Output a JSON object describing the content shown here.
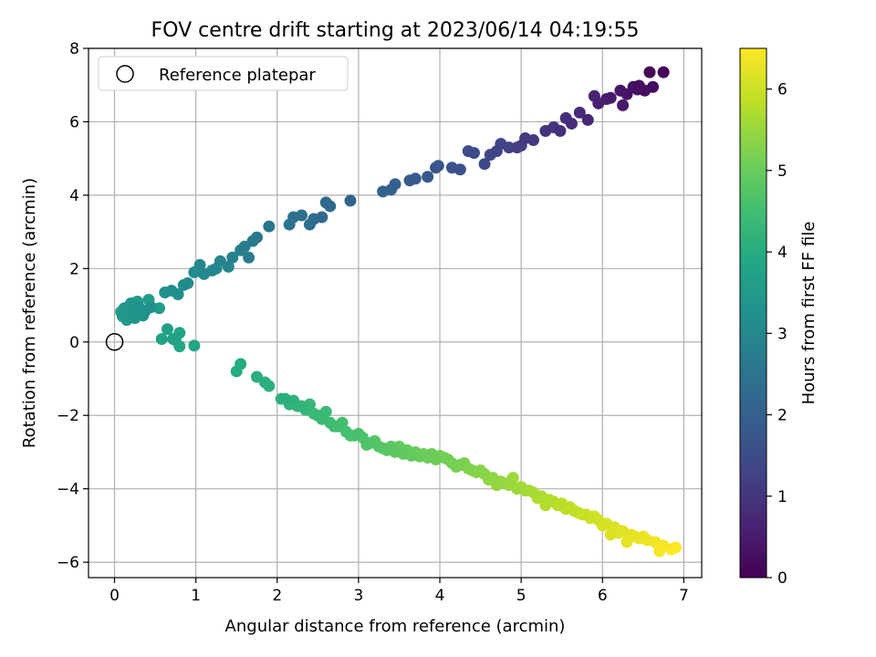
{
  "chart_data": {
    "type": "scatter",
    "title": "FOV centre drift starting at 2023/06/14 04:19:55",
    "xlabel": "Angular distance from reference (arcmin)",
    "ylabel": "Rotation from reference (arcmin)",
    "xlim": [
      -0.32,
      7.22
    ],
    "ylim": [
      -6.42,
      8.0
    ],
    "xticks": [
      0,
      1,
      2,
      3,
      4,
      5,
      6,
      7
    ],
    "yticks": [
      -6,
      -4,
      -2,
      0,
      2,
      4,
      6,
      8
    ],
    "grid": true,
    "legend": {
      "placement": "top-left",
      "entries": [
        "Reference platepar"
      ]
    },
    "reference_point": {
      "x": 0,
      "y": 0,
      "label": "Reference platepar"
    },
    "colorbar": {
      "label": "Hours from first FF file",
      "colormap": "viridis",
      "range": [
        0,
        6.5
      ],
      "ticks": [
        0,
        1,
        2,
        3,
        4,
        5,
        6
      ]
    },
    "series": [
      {
        "x": [
          6.58,
          6.75,
          6.62,
          6.45,
          6.52,
          6.38,
          6.43,
          6.3,
          6.22,
          6.25,
          6.1,
          6.05,
          5.95,
          5.9,
          5.82,
          5.72,
          5.62,
          5.55,
          5.48,
          5.4,
          5.3,
          5.15,
          5.05,
          5.0,
          4.95,
          4.85,
          4.75,
          4.7,
          4.62,
          4.55,
          4.42,
          4.35,
          4.25,
          4.15,
          3.98,
          3.95,
          3.85,
          3.7,
          3.63,
          3.45,
          3.4,
          3.3,
          2.9,
          2.65,
          2.6,
          2.55,
          2.45,
          2.4,
          2.3,
          2.2,
          2.15,
          1.9,
          1.75,
          1.7,
          1.65,
          1.6,
          1.55,
          1.45,
          1.4,
          1.3,
          1.25,
          1.2,
          1.1,
          1.05,
          0.98,
          0.9,
          0.85,
          0.78,
          0.7,
          0.62,
          0.45,
          0.38,
          0.35,
          0.3,
          0.25,
          0.22,
          0.2,
          0.15,
          0.12,
          0.1,
          0.08,
          0.15,
          0.22,
          0.28,
          0.42,
          0.55,
          0.65,
          0.72,
          0.8,
          0.98
        ],
        "y": [
          7.35,
          7.35,
          6.95,
          6.98,
          6.85,
          6.95,
          6.88,
          6.75,
          6.85,
          6.45,
          6.65,
          6.62,
          6.5,
          6.7,
          6.05,
          6.25,
          5.95,
          6.1,
          5.75,
          5.85,
          5.75,
          5.5,
          5.55,
          5.35,
          5.3,
          5.3,
          5.4,
          5.2,
          5.1,
          4.85,
          5.15,
          5.2,
          4.7,
          4.75,
          4.8,
          4.75,
          4.5,
          4.45,
          4.4,
          4.3,
          4.15,
          4.1,
          3.85,
          3.7,
          3.8,
          3.4,
          3.35,
          3.2,
          3.45,
          3.4,
          3.2,
          3.15,
          2.85,
          2.75,
          2.3,
          2.6,
          2.5,
          2.3,
          2.05,
          2.2,
          2.0,
          1.95,
          1.85,
          2.1,
          1.9,
          1.6,
          1.55,
          1.3,
          1.4,
          1.35,
          0.95,
          0.85,
          0.72,
          0.95,
          0.65,
          0.8,
          1.05,
          0.75,
          0.92,
          0.7,
          0.82,
          0.6,
          0.68,
          1.1,
          1.15,
          0.92,
          0.35,
          0.08,
          0.25,
          -0.1
        ],
        "t": [
          0.1,
          0.1,
          0.2,
          0.25,
          0.25,
          0.3,
          0.3,
          0.35,
          0.4,
          0.45,
          0.5,
          0.55,
          0.6,
          0.65,
          0.7,
          0.75,
          0.8,
          0.85,
          0.9,
          0.95,
          1.0,
          1.05,
          1.1,
          1.15,
          1.2,
          1.25,
          1.3,
          1.35,
          1.4,
          1.45,
          1.5,
          1.55,
          1.6,
          1.65,
          1.7,
          1.75,
          1.8,
          1.85,
          1.9,
          1.95,
          2.0,
          2.05,
          2.1,
          2.15,
          2.2,
          2.25,
          2.3,
          2.35,
          2.4,
          2.45,
          2.5,
          2.55,
          2.6,
          2.65,
          2.7,
          2.75,
          2.8,
          2.85,
          2.9,
          2.95,
          3.0,
          3.0,
          3.05,
          3.05,
          3.1,
          3.1,
          3.15,
          3.15,
          3.2,
          3.2,
          3.25,
          3.25,
          3.3,
          3.3,
          3.35,
          3.35,
          3.4,
          3.4,
          3.45,
          3.45,
          3.5,
          3.5,
          3.5,
          3.55,
          3.55,
          3.6,
          3.65,
          3.7,
          3.75,
          3.8
        ]
      },
      {
        "x": [
          0.58,
          0.75,
          0.8,
          1.5,
          1.55,
          1.75,
          1.85,
          1.9,
          2.05,
          2.15,
          2.25,
          2.35,
          2.45,
          2.55,
          2.65,
          2.75,
          2.85,
          2.95,
          3.05,
          3.15,
          3.25,
          3.35,
          3.45,
          3.55,
          3.65,
          3.75,
          3.85,
          3.95,
          4.05,
          4.15,
          4.25,
          4.35,
          4.45,
          4.55,
          4.65,
          4.75,
          4.85,
          4.95,
          5.05,
          5.15,
          5.25,
          5.35,
          5.45,
          5.55,
          5.65,
          5.75,
          5.85,
          5.95,
          6.05,
          6.15,
          6.25,
          6.35,
          6.45,
          6.55,
          6.65,
          6.75,
          6.85,
          6.9,
          2.2,
          2.4,
          2.6,
          2.8,
          3.0,
          3.2,
          3.4,
          3.6,
          3.8,
          4.0,
          4.2,
          4.4,
          4.6,
          4.8,
          5.0,
          5.2,
          5.4,
          5.6,
          5.8,
          6.0,
          6.2,
          6.4,
          2.1,
          2.3,
          2.5,
          2.7,
          2.9,
          3.1,
          3.3,
          3.5,
          3.7,
          3.9,
          4.1,
          4.3,
          4.5,
          4.7,
          4.9,
          5.1,
          5.3,
          5.5,
          5.7,
          5.9,
          6.1,
          6.3,
          6.5,
          6.7
        ],
        "y": [
          0.08,
          0.05,
          -0.12,
          -0.8,
          -0.6,
          -0.95,
          -1.1,
          -1.2,
          -1.55,
          -1.7,
          -1.75,
          -1.85,
          -1.95,
          -2.1,
          -2.2,
          -2.3,
          -2.45,
          -2.55,
          -2.6,
          -2.75,
          -2.85,
          -2.95,
          -3.0,
          -3.05,
          -3.1,
          -3.12,
          -3.15,
          -3.2,
          -3.15,
          -3.3,
          -3.35,
          -3.45,
          -3.55,
          -3.6,
          -3.7,
          -3.8,
          -3.9,
          -4.0,
          -4.05,
          -4.1,
          -4.2,
          -4.3,
          -4.45,
          -4.55,
          -4.6,
          -4.7,
          -4.8,
          -4.85,
          -4.95,
          -5.05,
          -5.15,
          -5.25,
          -5.35,
          -5.4,
          -5.45,
          -5.55,
          -5.65,
          -5.6,
          -1.6,
          -1.7,
          -1.9,
          -2.2,
          -2.5,
          -2.7,
          -2.85,
          -2.95,
          -3.05,
          -3.1,
          -3.4,
          -3.5,
          -3.75,
          -3.85,
          -3.95,
          -4.25,
          -4.35,
          -4.5,
          -4.7,
          -5.0,
          -5.2,
          -5.3,
          -1.55,
          -1.75,
          -2.0,
          -2.3,
          -2.55,
          -2.8,
          -2.9,
          -2.85,
          -3.0,
          -3.05,
          -3.2,
          -3.3,
          -3.5,
          -3.9,
          -3.7,
          -4.05,
          -4.45,
          -4.4,
          -4.65,
          -4.75,
          -5.25,
          -5.45,
          -5.3,
          -5.7
        ],
        "t": [
          3.75,
          3.85,
          3.9,
          4.0,
          4.0,
          4.05,
          4.1,
          4.1,
          4.15,
          4.2,
          4.25,
          4.3,
          4.35,
          4.4,
          4.45,
          4.5,
          4.55,
          4.6,
          4.65,
          4.7,
          4.75,
          4.8,
          4.85,
          4.9,
          4.95,
          5.0,
          5.0,
          5.05,
          5.1,
          5.15,
          5.2,
          5.25,
          5.3,
          5.35,
          5.4,
          5.45,
          5.5,
          5.55,
          5.6,
          5.65,
          5.7,
          5.75,
          5.8,
          5.85,
          5.9,
          5.95,
          6.0,
          6.05,
          6.1,
          6.15,
          6.2,
          6.25,
          6.3,
          6.35,
          6.4,
          6.45,
          6.5,
          6.5,
          4.15,
          4.3,
          4.4,
          4.55,
          4.65,
          4.75,
          4.85,
          4.95,
          5.05,
          5.1,
          5.2,
          5.3,
          5.4,
          5.5,
          5.6,
          5.7,
          5.8,
          5.9,
          6.0,
          6.1,
          6.2,
          6.3,
          4.1,
          4.25,
          4.35,
          4.5,
          4.6,
          4.7,
          4.8,
          4.9,
          5.0,
          5.05,
          5.15,
          5.25,
          5.35,
          5.45,
          5.55,
          5.65,
          5.75,
          5.85,
          5.95,
          6.05,
          6.15,
          6.25,
          6.35,
          6.45
        ]
      }
    ]
  }
}
